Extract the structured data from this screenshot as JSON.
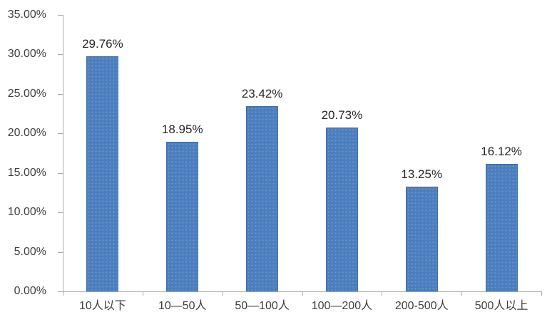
{
  "chart_data": {
    "type": "bar",
    "title": "",
    "xlabel": "",
    "ylabel": "",
    "categories": [
      "10人以下",
      "10—50人",
      "50—100人",
      "100—200人",
      "200-500人",
      "500人以上"
    ],
    "values": [
      29.76,
      18.95,
      23.42,
      20.73,
      13.25,
      16.12
    ],
    "value_labels": [
      "29.76%",
      "18.95%",
      "23.42%",
      "20.73%",
      "13.25%",
      "16.12%"
    ],
    "ylim": [
      0,
      35
    ],
    "y_ticks": [
      0,
      5,
      10,
      15,
      20,
      25,
      30,
      35
    ],
    "y_tick_labels": [
      "0.00%",
      "5.00%",
      "10.00%",
      "15.00%",
      "20.00%",
      "25.00%",
      "30.00%",
      "35.00%"
    ],
    "grid": "off",
    "legend": "none",
    "colors": {
      "bar_fill": "#4b7ebe",
      "bar_border": "#2a588c",
      "axis_line": "#ababab",
      "axis_text": "#3d3d3d",
      "data_label_text": "#262626",
      "background": "#ffffff"
    }
  }
}
